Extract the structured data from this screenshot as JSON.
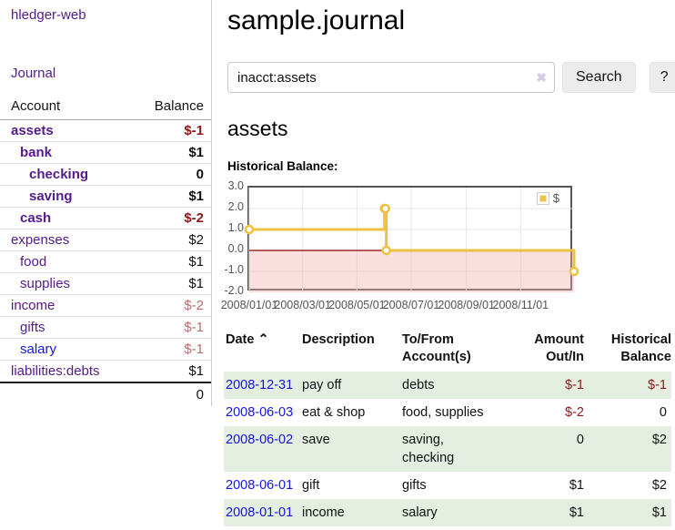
{
  "colors": {
    "accent_purple": "#551a8b",
    "link_blue": "#1414dd",
    "negative_strong": "#8b1a1a",
    "negative_soft": "#b56e6e",
    "row_green": "#e4efe2",
    "chart_gold": "#edc240",
    "chart_border": "#545454",
    "zero_line": "#8b0000"
  },
  "sidebar": {
    "app_title": "hledger-web",
    "journal_link": "Journal",
    "accounts": {
      "header_account": "Account",
      "header_balance": "Balance",
      "rows": [
        {
          "name": "assets",
          "balance": "$-1",
          "depth": 1,
          "bold": true,
          "name_style": "purple",
          "balance_style": "neg-strong"
        },
        {
          "name": "bank",
          "balance": "$1",
          "depth": 2,
          "bold": true,
          "name_style": "purple",
          "balance_style": ""
        },
        {
          "name": "checking",
          "balance": "0",
          "depth": 3,
          "bold": true,
          "name_style": "purple",
          "balance_style": ""
        },
        {
          "name": "saving",
          "balance": "$1",
          "depth": 3,
          "bold": true,
          "name_style": "purple",
          "balance_style": ""
        },
        {
          "name": "cash",
          "balance": "$-2",
          "depth": 2,
          "bold": true,
          "name_style": "purple",
          "balance_style": "neg-strong"
        },
        {
          "name": "expenses",
          "balance": "$2",
          "depth": 1,
          "bold": false,
          "name_style": "purple",
          "balance_style": ""
        },
        {
          "name": "food",
          "balance": "$1",
          "depth": 2,
          "bold": false,
          "name_style": "purple",
          "balance_style": ""
        },
        {
          "name": "supplies",
          "balance": "$1",
          "depth": 2,
          "bold": false,
          "name_style": "purple",
          "balance_style": ""
        },
        {
          "name": "income",
          "balance": "$-2",
          "depth": 1,
          "bold": false,
          "name_style": "purple",
          "balance_style": "neg-soft"
        },
        {
          "name": "gifts",
          "balance": "$-1",
          "depth": 2,
          "bold": false,
          "name_style": "purple",
          "balance_style": "neg-soft"
        },
        {
          "name": "salary",
          "balance": "$-1",
          "depth": 2,
          "bold": false,
          "name_style": "blue",
          "balance_style": "neg-soft"
        },
        {
          "name": "liabilities:debts",
          "balance": "$1",
          "depth": 1,
          "bold": false,
          "name_style": "purple",
          "balance_style": ""
        }
      ],
      "total": "0"
    }
  },
  "main": {
    "title": "sample.journal",
    "search": {
      "value": "inacct:assets",
      "clear_icon": "✖",
      "search_button": "Search",
      "help_button": "?"
    },
    "account_heading": "assets",
    "chart_label": "Historical Balance:"
  },
  "chart_data": {
    "type": "line",
    "step": true,
    "title": "Historical Balance:",
    "series": [
      {
        "name": "$",
        "color": "#edc240",
        "points": [
          [
            "2008-01-01",
            1.0
          ],
          [
            "2008-06-01",
            2.0
          ],
          [
            "2008-06-02",
            2.0
          ],
          [
            "2008-06-03",
            0.0
          ],
          [
            "2008-12-31",
            -1.0
          ]
        ]
      }
    ],
    "x_range": [
      "2008-01-01",
      "2008-12-31"
    ],
    "y_range": [
      -2.0,
      3.0
    ],
    "y_ticks": [
      3.0,
      2.0,
      1.0,
      0.0,
      -1.0,
      -2.0
    ],
    "y_tick_labels": [
      "3.0",
      "2.0",
      "1.0",
      "0.0",
      "-1.0",
      "-2.0"
    ],
    "x_tick_labels": [
      "2008/01/01",
      "2008/03/01",
      "2008/05/01",
      "2008/07/01",
      "2008/09/01",
      "2008/11/01"
    ],
    "legend": {
      "label": "$",
      "position": "top-right"
    },
    "grid": true,
    "negative_region": {
      "below": 0.0,
      "fill": "#fbdcdc"
    },
    "zero_line_color": "#8b0000"
  },
  "register": {
    "headers": {
      "date": "Date",
      "sort_icon": "⌃",
      "description": "Description",
      "account": "To/From\nAccount(s)",
      "amount": "Amount\nOut/In",
      "balance": "Historical\nBalance"
    },
    "rows": [
      {
        "date": "2008-12-31",
        "description": "pay off",
        "accounts": "debts",
        "amount": "$-1",
        "balance": "$-1",
        "amount_negative": true,
        "balance_negative": true
      },
      {
        "date": "2008-06-03",
        "description": "eat & shop",
        "accounts": "food, supplies",
        "amount": "$-2",
        "balance": "0",
        "amount_negative": true,
        "balance_negative": false
      },
      {
        "date": "2008-06-02",
        "description": "save",
        "accounts": "saving,\nchecking",
        "amount": "0",
        "balance": "$2",
        "amount_negative": false,
        "balance_negative": false
      },
      {
        "date": "2008-06-01",
        "description": "gift",
        "accounts": "gifts",
        "amount": "$1",
        "balance": "$2",
        "amount_negative": false,
        "balance_negative": false
      },
      {
        "date": "2008-01-01",
        "description": "income",
        "accounts": "salary",
        "amount": "$1",
        "balance": "$1",
        "amount_negative": false,
        "balance_negative": false
      }
    ]
  }
}
